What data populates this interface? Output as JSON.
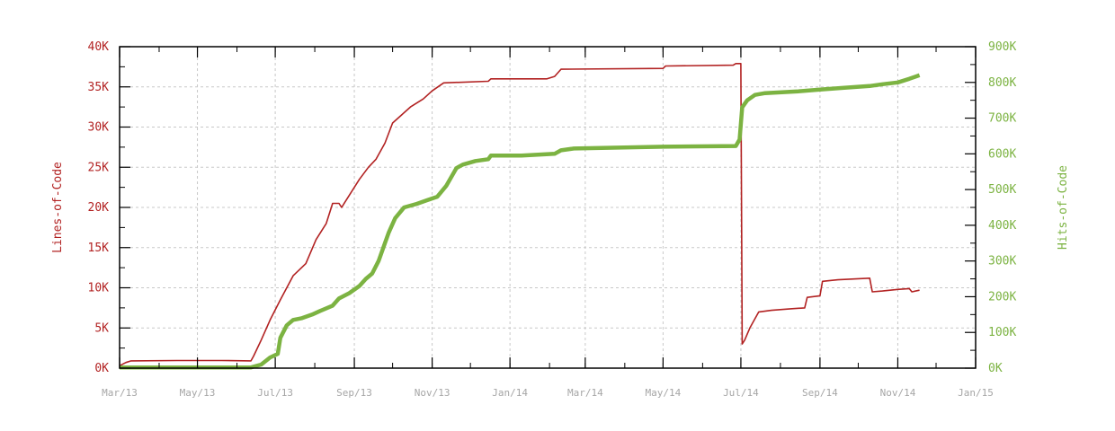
{
  "chart_data": {
    "type": "line",
    "x_axis": {
      "ticks": [
        "Mar/13",
        "May/13",
        "Jul/13",
        "Sep/13",
        "Nov/13",
        "Jan/14",
        "Mar/14",
        "May/14",
        "Jul/14",
        "Sep/14",
        "Nov/14",
        "Jan/15"
      ],
      "range": [
        "2013-03-01",
        "2015-01-01"
      ]
    },
    "y_left": {
      "label": "Lines-of-Code",
      "ticks": [
        "0K",
        "5K",
        "10K",
        "15K",
        "20K",
        "25K",
        "30K",
        "35K",
        "40K"
      ],
      "range": [
        0,
        40000
      ],
      "color": "#b22222"
    },
    "y_right": {
      "label": "Hits-of-Code",
      "ticks": [
        "0K",
        "100K",
        "200K",
        "300K",
        "400K",
        "500K",
        "600K",
        "700K",
        "800K",
        "900K"
      ],
      "range": [
        0,
        900000
      ],
      "color": "#7cb342"
    },
    "grid": true,
    "series": [
      {
        "name": "Lines-of-Code",
        "axis": "left",
        "color": "#b22222",
        "points": [
          [
            "2013-03-01",
            300
          ],
          [
            "2013-03-06",
            700
          ],
          [
            "2013-03-10",
            900
          ],
          [
            "2013-04-15",
            950
          ],
          [
            "2013-05-20",
            950
          ],
          [
            "2013-06-12",
            900
          ],
          [
            "2013-06-14",
            1500
          ],
          [
            "2013-06-20",
            3500
          ],
          [
            "2013-06-27",
            6000
          ],
          [
            "2013-07-05",
            8500
          ],
          [
            "2013-07-15",
            11500
          ],
          [
            "2013-07-25",
            13000
          ],
          [
            "2013-08-02",
            16000
          ],
          [
            "2013-08-10",
            18000
          ],
          [
            "2013-08-15",
            20500
          ],
          [
            "2013-08-20",
            20500
          ],
          [
            "2013-08-22",
            20000
          ],
          [
            "2013-08-28",
            21500
          ],
          [
            "2013-09-05",
            23500
          ],
          [
            "2013-09-12",
            25000
          ],
          [
            "2013-09-18",
            26000
          ],
          [
            "2013-09-25",
            28000
          ],
          [
            "2013-10-01",
            30500
          ],
          [
            "2013-10-08",
            31500
          ],
          [
            "2013-10-15",
            32500
          ],
          [
            "2013-10-25",
            33500
          ],
          [
            "2013-11-01",
            34500
          ],
          [
            "2013-11-10",
            35500
          ],
          [
            "2013-12-15",
            35700
          ],
          [
            "2013-12-17",
            36000
          ],
          [
            "2014-01-30",
            36000
          ],
          [
            "2014-02-05",
            36300
          ],
          [
            "2014-02-10",
            37200
          ],
          [
            "2014-05-01",
            37300
          ],
          [
            "2014-05-03",
            37600
          ],
          [
            "2014-06-25",
            37700
          ],
          [
            "2014-06-27",
            37900
          ],
          [
            "2014-07-01",
            37900
          ],
          [
            "2014-07-02",
            3000
          ],
          [
            "2014-07-04",
            3500
          ],
          [
            "2014-07-08",
            5000
          ],
          [
            "2014-07-15",
            7000
          ],
          [
            "2014-07-25",
            7200
          ],
          [
            "2014-08-10",
            7400
          ],
          [
            "2014-08-20",
            7500
          ],
          [
            "2014-08-22",
            8800
          ],
          [
            "2014-09-01",
            9000
          ],
          [
            "2014-09-03",
            10800
          ],
          [
            "2014-09-15",
            11000
          ],
          [
            "2014-10-10",
            11200
          ],
          [
            "2014-10-12",
            9500
          ],
          [
            "2014-10-20",
            9600
          ],
          [
            "2014-11-01",
            9800
          ],
          [
            "2014-11-10",
            9900
          ],
          [
            "2014-11-12",
            9500
          ],
          [
            "2014-11-18",
            9700
          ]
        ]
      },
      {
        "name": "Hits-of-Code",
        "axis": "right",
        "color": "#7cb342",
        "points": [
          [
            "2013-03-01",
            2000
          ],
          [
            "2013-06-12",
            2000
          ],
          [
            "2013-06-20",
            10000
          ],
          [
            "2013-06-27",
            30000
          ],
          [
            "2013-07-03",
            40000
          ],
          [
            "2013-07-05",
            85000
          ],
          [
            "2013-07-10",
            120000
          ],
          [
            "2013-07-15",
            135000
          ],
          [
            "2013-07-22",
            140000
          ],
          [
            "2013-07-30",
            150000
          ],
          [
            "2013-08-05",
            160000
          ],
          [
            "2013-08-15",
            175000
          ],
          [
            "2013-08-20",
            195000
          ],
          [
            "2013-08-28",
            210000
          ],
          [
            "2013-09-05",
            230000
          ],
          [
            "2013-09-10",
            250000
          ],
          [
            "2013-09-15",
            265000
          ],
          [
            "2013-09-20",
            300000
          ],
          [
            "2013-09-25",
            350000
          ],
          [
            "2013-09-28",
            380000
          ],
          [
            "2013-10-03",
            420000
          ],
          [
            "2013-10-10",
            450000
          ],
          [
            "2013-10-20",
            460000
          ],
          [
            "2013-10-28",
            470000
          ],
          [
            "2013-11-05",
            480000
          ],
          [
            "2013-11-12",
            510000
          ],
          [
            "2013-11-20",
            560000
          ],
          [
            "2013-11-25",
            570000
          ],
          [
            "2013-12-05",
            580000
          ],
          [
            "2013-12-15",
            585000
          ],
          [
            "2013-12-17",
            595000
          ],
          [
            "2014-01-10",
            595000
          ],
          [
            "2014-02-05",
            600000
          ],
          [
            "2014-02-10",
            610000
          ],
          [
            "2014-02-20",
            615000
          ],
          [
            "2014-05-01",
            620000
          ],
          [
            "2014-06-27",
            622000
          ],
          [
            "2014-06-30",
            640000
          ],
          [
            "2014-07-02",
            730000
          ],
          [
            "2014-07-06",
            750000
          ],
          [
            "2014-07-12",
            765000
          ],
          [
            "2014-07-20",
            770000
          ],
          [
            "2014-08-15",
            775000
          ],
          [
            "2014-09-01",
            780000
          ],
          [
            "2014-09-20",
            785000
          ],
          [
            "2014-10-10",
            790000
          ],
          [
            "2014-10-20",
            795000
          ],
          [
            "2014-11-01",
            800000
          ],
          [
            "2014-11-10",
            810000
          ],
          [
            "2014-11-18",
            820000
          ]
        ]
      }
    ]
  }
}
